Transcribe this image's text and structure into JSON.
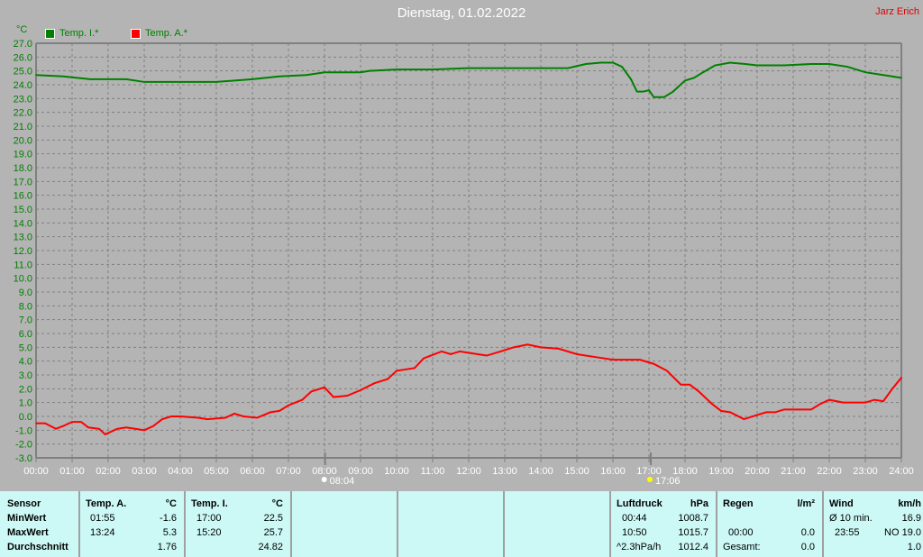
{
  "header": {
    "title": "Dienstag, 01.02.2022",
    "author": "Jarz Erich"
  },
  "legend": [
    {
      "name": "Temp. I.*",
      "color": "#008000"
    },
    {
      "name": "Temp. A.*",
      "color": "#ff0000"
    }
  ],
  "chart_data": {
    "type": "line",
    "ylabel": "°C",
    "ylim": [
      -3,
      27
    ],
    "yticks": [
      "27.0",
      "26.0",
      "25.0",
      "24.0",
      "23.0",
      "22.0",
      "21.0",
      "20.0",
      "19.0",
      "18.0",
      "17.0",
      "16.0",
      "15.0",
      "14.0",
      "13.0",
      "12.0",
      "11.0",
      "10.0",
      "9.0",
      "8.0",
      "7.0",
      "6.0",
      "5.0",
      "4.0",
      "3.0",
      "2.0",
      "1.0",
      "0.0",
      "-1.0",
      "-2.0",
      "-3.0"
    ],
    "xticks": [
      "00:00",
      "01:00",
      "02:00",
      "03:00",
      "04:00",
      "05:00",
      "06:00",
      "07:00",
      "08:00",
      "09:00",
      "10:00",
      "11:00",
      "12:00",
      "13:00",
      "14:00",
      "15:00",
      "16:00",
      "17:00",
      "18:00",
      "19:00",
      "20:00",
      "21:00",
      "22:00",
      "23:00",
      "24:00"
    ],
    "grid": true,
    "legend_position": "top-left",
    "annotations": [
      {
        "label": "08:04",
        "time": "08:04",
        "icon": "sunrise-icon"
      },
      {
        "label": "17:06",
        "time": "17:06",
        "icon": "sunset-icon"
      }
    ],
    "series": [
      {
        "name": "Temp. I.*",
        "color": "#008000",
        "points": [
          [
            "00:00",
            24.7
          ],
          [
            "00:45",
            24.6
          ],
          [
            "01:30",
            24.4
          ],
          [
            "02:30",
            24.4
          ],
          [
            "03:00",
            24.2
          ],
          [
            "05:00",
            24.2
          ],
          [
            "06:00",
            24.4
          ],
          [
            "06:45",
            24.6
          ],
          [
            "07:30",
            24.7
          ],
          [
            "08:00",
            24.9
          ],
          [
            "09:00",
            24.9
          ],
          [
            "09:15",
            25.0
          ],
          [
            "10:00",
            25.1
          ],
          [
            "11:00",
            25.1
          ],
          [
            "12:00",
            25.2
          ],
          [
            "13:00",
            25.2
          ],
          [
            "14:00",
            25.2
          ],
          [
            "14:45",
            25.2
          ],
          [
            "15:15",
            25.5
          ],
          [
            "15:40",
            25.6
          ],
          [
            "16:00",
            25.6
          ],
          [
            "16:15",
            25.3
          ],
          [
            "16:30",
            24.4
          ],
          [
            "16:40",
            23.5
          ],
          [
            "16:50",
            23.5
          ],
          [
            "17:00",
            23.6
          ],
          [
            "17:08",
            23.1
          ],
          [
            "17:25",
            23.1
          ],
          [
            "17:40",
            23.5
          ],
          [
            "18:00",
            24.3
          ],
          [
            "18:15",
            24.5
          ],
          [
            "18:30",
            24.9
          ],
          [
            "18:50",
            25.4
          ],
          [
            "19:15",
            25.6
          ],
          [
            "19:40",
            25.5
          ],
          [
            "20:00",
            25.4
          ],
          [
            "20:45",
            25.4
          ],
          [
            "21:30",
            25.5
          ],
          [
            "22:00",
            25.5
          ],
          [
            "22:30",
            25.3
          ],
          [
            "23:00",
            24.9
          ],
          [
            "23:30",
            24.7
          ],
          [
            "24:00",
            24.5
          ]
        ]
      },
      {
        "name": "Temp. A.*",
        "color": "#ff0000",
        "points": [
          [
            "00:00",
            -0.5
          ],
          [
            "00:15",
            -0.5
          ],
          [
            "00:33",
            -0.9
          ],
          [
            "00:45",
            -0.7
          ],
          [
            "01:00",
            -0.4
          ],
          [
            "01:15",
            -0.4
          ],
          [
            "01:27",
            -0.8
          ],
          [
            "01:45",
            -0.9
          ],
          [
            "01:55",
            -1.3
          ],
          [
            "02:15",
            -0.9
          ],
          [
            "02:30",
            -0.8
          ],
          [
            "02:45",
            -0.9
          ],
          [
            "03:00",
            -1.0
          ],
          [
            "03:15",
            -0.7
          ],
          [
            "03:30",
            -0.2
          ],
          [
            "03:45",
            0.0
          ],
          [
            "04:00",
            0.0
          ],
          [
            "04:30",
            -0.1
          ],
          [
            "04:45",
            -0.2
          ],
          [
            "05:15",
            -0.1
          ],
          [
            "05:30",
            0.2
          ],
          [
            "05:45",
            0.0
          ],
          [
            "06:08",
            -0.1
          ],
          [
            "06:30",
            0.3
          ],
          [
            "06:45",
            0.4
          ],
          [
            "07:00",
            0.8
          ],
          [
            "07:23",
            1.2
          ],
          [
            "07:38",
            1.8
          ],
          [
            "08:00",
            2.1
          ],
          [
            "08:15",
            1.4
          ],
          [
            "08:38",
            1.5
          ],
          [
            "09:00",
            1.9
          ],
          [
            "09:23",
            2.4
          ],
          [
            "09:45",
            2.7
          ],
          [
            "10:00",
            3.3
          ],
          [
            "10:30",
            3.5
          ],
          [
            "10:45",
            4.2
          ],
          [
            "11:15",
            4.7
          ],
          [
            "11:30",
            4.5
          ],
          [
            "11:45",
            4.7
          ],
          [
            "12:15",
            4.5
          ],
          [
            "12:30",
            4.4
          ],
          [
            "12:53",
            4.7
          ],
          [
            "13:15",
            5.0
          ],
          [
            "13:38",
            5.2
          ],
          [
            "14:00",
            5.0
          ],
          [
            "14:30",
            4.9
          ],
          [
            "15:00",
            4.5
          ],
          [
            "15:30",
            4.3
          ],
          [
            "16:00",
            4.1
          ],
          [
            "16:45",
            4.1
          ],
          [
            "17:08",
            3.8
          ],
          [
            "17:30",
            3.3
          ],
          [
            "17:53",
            2.3
          ],
          [
            "18:08",
            2.3
          ],
          [
            "18:23",
            1.8
          ],
          [
            "18:45",
            0.9
          ],
          [
            "19:00",
            0.4
          ],
          [
            "19:15",
            0.3
          ],
          [
            "19:38",
            -0.2
          ],
          [
            "20:00",
            0.1
          ],
          [
            "20:15",
            0.3
          ],
          [
            "20:30",
            0.3
          ],
          [
            "20:45",
            0.5
          ],
          [
            "21:08",
            0.5
          ],
          [
            "21:30",
            0.5
          ],
          [
            "21:45",
            0.9
          ],
          [
            "22:00",
            1.2
          ],
          [
            "22:23",
            1.0
          ],
          [
            "22:45",
            1.0
          ],
          [
            "23:00",
            1.0
          ],
          [
            "23:15",
            1.2
          ],
          [
            "23:30",
            1.1
          ],
          [
            "23:45",
            2.0
          ],
          [
            "24:00",
            2.8
          ]
        ]
      }
    ]
  },
  "table": {
    "labels": {
      "sensor": "Sensor",
      "min": "MinWert",
      "max": "MaxWert",
      "avg": "Durchschnitt"
    },
    "temp_a": {
      "title": "Temp. A.",
      "unit": "°C",
      "min_time": "01:55",
      "min": "-1.6",
      "max_time": "13:24",
      "max": "5.3",
      "avg": "1.76"
    },
    "temp_i": {
      "title": "Temp. I.",
      "unit": "°C",
      "min_time": "17:00",
      "min": "22.5",
      "max_time": "15:20",
      "max": "25.7",
      "avg": "24.82"
    },
    "pressure": {
      "title": "Luftdruck",
      "unit": "hPa",
      "r1a": "00:44",
      "r1b": "1008.7",
      "r2a": "10:50",
      "r2b": "1015.7",
      "r3a": "^2.3hPa/h",
      "r3b": "1012.4"
    },
    "rain": {
      "title": "Regen",
      "unit": "l/m²",
      "r2a": "00:00",
      "r2b": "0.0",
      "r3a": "Gesamt:",
      "r3b": "0.0"
    },
    "wind": {
      "title": "Wind",
      "unit": "km/h",
      "r1a": "Ø 10 min.",
      "r1b": "16.9",
      "r2a": "23:55",
      "r2b": "NO 19.0",
      "r3b": "1.0"
    }
  }
}
